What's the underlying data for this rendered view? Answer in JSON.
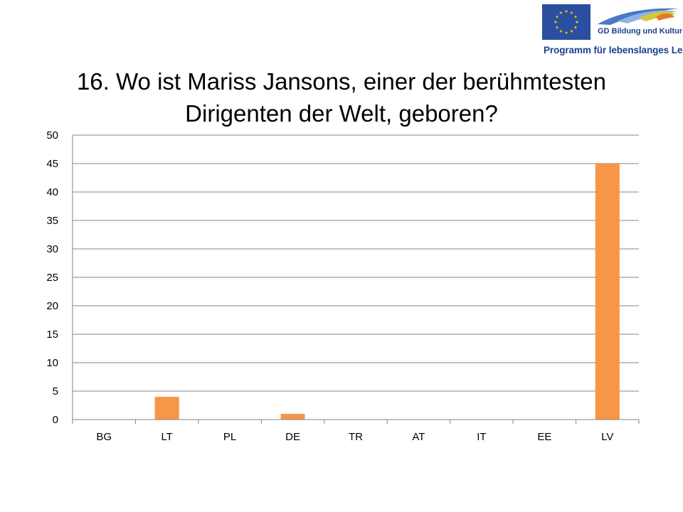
{
  "logo": {
    "flag_icon": "eu-flag-icon",
    "wing_icon": "lifelong-learning-wing-icon",
    "line1": "GD Bildung und Kultur",
    "line2": "Programm für lebenslanges Lernen",
    "flag_color": "#2a4fa0",
    "star_color": "#ffcc00"
  },
  "chart_data": {
    "type": "bar",
    "title": "16. Wo ist Mariss Jansons, einer der berühmtesten Dirigenten der Welt, geboren?",
    "categories": [
      "BG",
      "LT",
      "PL",
      "DE",
      "TR",
      "AT",
      "IT",
      "EE",
      "LV"
    ],
    "values": [
      0,
      4,
      0,
      1,
      0,
      0,
      0,
      0,
      45
    ],
    "xlabel": "",
    "ylabel": "",
    "ylim": [
      0,
      50
    ],
    "yticks": [
      0,
      5,
      10,
      15,
      20,
      25,
      30,
      35,
      40,
      45,
      50
    ],
    "grid": true,
    "legend": "none",
    "bar_color": "#f79646"
  }
}
